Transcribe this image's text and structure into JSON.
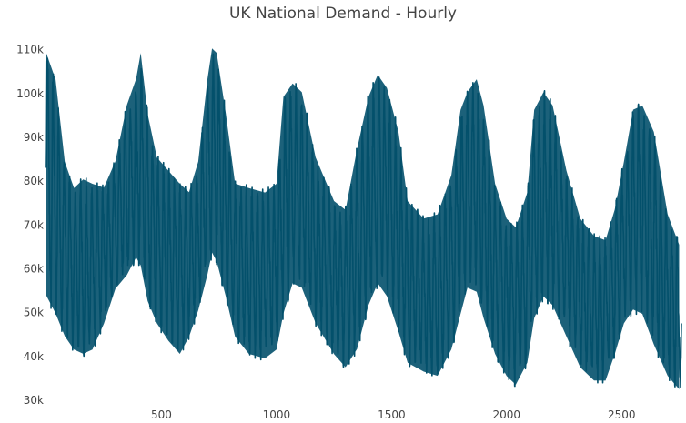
{
  "chart_data": {
    "type": "area",
    "title": "UK National Demand - Hourly",
    "xlabel": "",
    "ylabel": "",
    "xlim": [
      0,
      2760
    ],
    "ylim": [
      30000,
      112000
    ],
    "grid": false,
    "legend": "none",
    "color": "#03506b",
    "yticks": [
      {
        "value": 30000,
        "label": "30k"
      },
      {
        "value": 40000,
        "label": "40k"
      },
      {
        "value": 50000,
        "label": "50k"
      },
      {
        "value": 60000,
        "label": "60k"
      },
      {
        "value": 70000,
        "label": "70k"
      },
      {
        "value": 80000,
        "label": "80k"
      },
      {
        "value": 90000,
        "label": "90k"
      },
      {
        "value": 100000,
        "label": "100k"
      },
      {
        "value": 110000,
        "label": "110k"
      }
    ],
    "xticks": [
      {
        "value": 500,
        "label": "500"
      },
      {
        "value": 1000,
        "label": "1000"
      },
      {
        "value": 1500,
        "label": "1500"
      },
      {
        "value": 2000,
        "label": "2000"
      },
      {
        "value": 2500,
        "label": "2500"
      }
    ],
    "series": [
      {
        "x": [
          0,
          40,
          80,
          120,
          160,
          200,
          250,
          300,
          350,
          390,
          410,
          440,
          480,
          530,
          580,
          620,
          660,
          700,
          720,
          740,
          780,
          820,
          880,
          950,
          1000,
          1030,
          1070,
          1110,
          1170,
          1250,
          1300,
          1350,
          1400,
          1440,
          1480,
          1530,
          1570,
          1640,
          1700,
          1760,
          1800,
          1830,
          1870,
          1900,
          1950,
          2000,
          2040,
          2090,
          2120,
          2160,
          2200,
          2260,
          2320,
          2380,
          2430,
          2470,
          2510,
          2550,
          2590,
          2640,
          2700,
          2750
        ],
        "high": [
          110000,
          104000,
          85000,
          79000,
          81000,
          80000,
          79000,
          85000,
          98000,
          104000,
          110000,
          96000,
          86000,
          83000,
          80000,
          78000,
          85000,
          104000,
          111000,
          110000,
          96000,
          80000,
          79000,
          78000,
          80000,
          100000,
          103000,
          101000,
          86000,
          76000,
          74000,
          88000,
          100000,
          105000,
          102000,
          92000,
          76000,
          72000,
          73000,
          82000,
          97000,
          101000,
          104000,
          98000,
          80000,
          72000,
          70000,
          78000,
          97000,
          101000,
          98000,
          83000,
          72000,
          68000,
          67000,
          74000,
          85000,
          97000,
          98000,
          92000,
          73000,
          66000
        ],
        "low": [
          53000,
          49000,
          44000,
          41000,
          40000,
          41000,
          47000,
          55000,
          58000,
          62000,
          60000,
          52000,
          47000,
          43000,
          40000,
          44000,
          50000,
          58000,
          63000,
          61000,
          53000,
          44000,
          40000,
          39000,
          41000,
          49000,
          56000,
          55000,
          47000,
          40000,
          37000,
          41000,
          51000,
          56000,
          53000,
          45000,
          38000,
          36000,
          35000,
          41000,
          49000,
          55000,
          54000,
          48000,
          40000,
          35000,
          33000,
          38000,
          48000,
          53000,
          51000,
          44000,
          37000,
          34000,
          34000,
          40000,
          47000,
          50000,
          49000,
          42000,
          35000,
          32000
        ]
      }
    ]
  }
}
